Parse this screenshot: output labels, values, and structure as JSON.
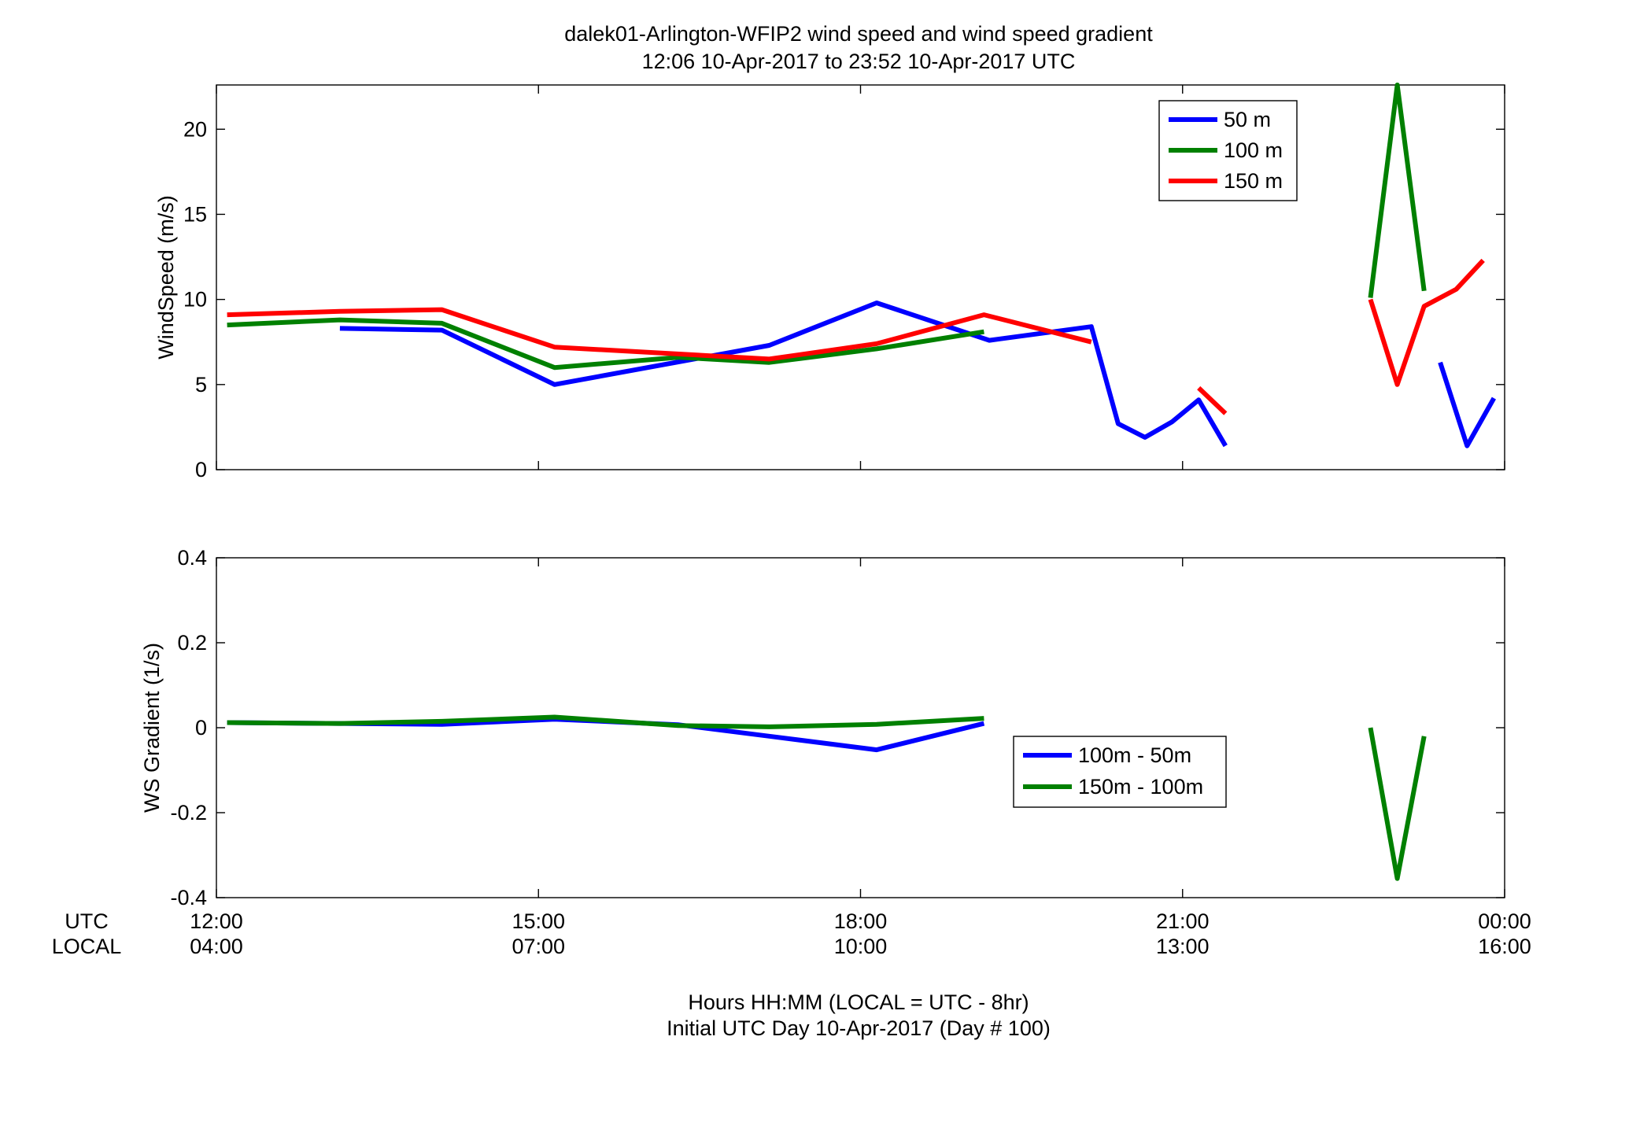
{
  "chart_data": {
    "title": "dalek01-Arlington-WFIP2  wind speed and wind speed gradient",
    "subtitle": "12:06 10-Apr-2017 to 23:52 10-Apr-2017  UTC",
    "xlabel": "Hours HH:MM  (LOCAL = UTC - 8hr)",
    "xlabel2": "Initial UTC Day 10-Apr-2017 (Day # 100)",
    "x_row_labels": [
      "UTC",
      "LOCAL"
    ],
    "xlim_hours_utc": [
      12,
      24
    ],
    "xticks_utc": [
      "12:00",
      "15:00",
      "18:00",
      "21:00",
      "00:00"
    ],
    "xticks_local": [
      "04:00",
      "07:00",
      "10:00",
      "13:00",
      "16:00"
    ],
    "panels": [
      {
        "type": "line",
        "ylabel": "WindSpeed (m/s)",
        "ylim": [
          0,
          22.6
        ],
        "yticks": [
          0,
          5,
          10,
          15,
          20
        ],
        "legend_position": "top-right",
        "series": [
          {
            "name": "50 m",
            "color": "#0000ff",
            "segments": [
              [
                [
                  13.15,
                  8.3
                ],
                [
                  14.1,
                  8.2
                ],
                [
                  15.15,
                  5.0
                ],
                [
                  17.15,
                  7.3
                ],
                [
                  18.15,
                  9.8
                ],
                [
                  19.2,
                  7.6
                ],
                [
                  20.15,
                  8.4
                ],
                [
                  20.4,
                  2.7
                ],
                [
                  20.65,
                  1.9
                ],
                [
                  20.9,
                  2.8
                ],
                [
                  21.15,
                  4.1
                ],
                [
                  21.4,
                  1.4
                ]
              ],
              [
                [
                  23.4,
                  6.3
                ],
                [
                  23.65,
                  1.4
                ],
                [
                  23.9,
                  4.2
                ]
              ]
            ]
          },
          {
            "name": "100 m",
            "color": "#008000",
            "segments": [
              [
                [
                  12.1,
                  8.5
                ],
                [
                  13.15,
                  8.8
                ],
                [
                  14.1,
                  8.6
                ],
                [
                  15.15,
                  6.0
                ],
                [
                  16.3,
                  6.6
                ],
                [
                  17.15,
                  6.3
                ],
                [
                  18.15,
                  7.1
                ],
                [
                  19.15,
                  8.1
                ]
              ],
              [
                [
                  22.75,
                  10.1
                ],
                [
                  23.0,
                  22.6
                ],
                [
                  23.25,
                  10.5
                ]
              ]
            ]
          },
          {
            "name": "150 m",
            "color": "#ff0000",
            "segments": [
              [
                [
                  12.1,
                  9.1
                ],
                [
                  13.15,
                  9.3
                ],
                [
                  14.1,
                  9.4
                ],
                [
                  15.15,
                  7.2
                ],
                [
                  17.15,
                  6.5
                ],
                [
                  18.15,
                  7.4
                ],
                [
                  19.15,
                  9.1
                ],
                [
                  20.15,
                  7.5
                ]
              ],
              [
                [
                  21.15,
                  4.8
                ],
                [
                  21.4,
                  3.3
                ]
              ],
              [
                [
                  22.75,
                  10.0
                ],
                [
                  23.0,
                  5.0
                ],
                [
                  23.25,
                  9.6
                ],
                [
                  23.55,
                  10.6
                ],
                [
                  23.8,
                  12.3
                ]
              ]
            ]
          }
        ]
      },
      {
        "type": "line",
        "ylabel": "WS Gradient (1/s)",
        "ylim": [
          -0.4,
          0.4
        ],
        "yticks": [
          -0.4,
          -0.2,
          0,
          0.2,
          0.4
        ],
        "legend_position": "center-right",
        "series": [
          {
            "name": "100m - 50m",
            "color": "#0000ff",
            "segments": [
              [
                [
                  12.1,
                  0.012
                ],
                [
                  13.15,
                  0.01
                ],
                [
                  14.1,
                  0.008
                ],
                [
                  15.15,
                  0.02
                ],
                [
                  16.3,
                  0.007
                ],
                [
                  17.15,
                  -0.02
                ],
                [
                  18.15,
                  -0.052
                ],
                [
                  19.15,
                  0.01
                ]
              ]
            ]
          },
          {
            "name": "150m - 100m",
            "color": "#008000",
            "segments": [
              [
                [
                  12.1,
                  0.012
                ],
                [
                  13.15,
                  0.01
                ],
                [
                  14.1,
                  0.015
                ],
                [
                  15.15,
                  0.025
                ],
                [
                  16.3,
                  0.005
                ],
                [
                  17.15,
                  0.002
                ],
                [
                  18.15,
                  0.008
                ],
                [
                  19.15,
                  0.022
                ]
              ],
              [
                [
                  22.75,
                  0.0
                ],
                [
                  23.0,
                  -0.355
                ],
                [
                  23.25,
                  -0.02
                ]
              ]
            ]
          }
        ]
      }
    ]
  }
}
